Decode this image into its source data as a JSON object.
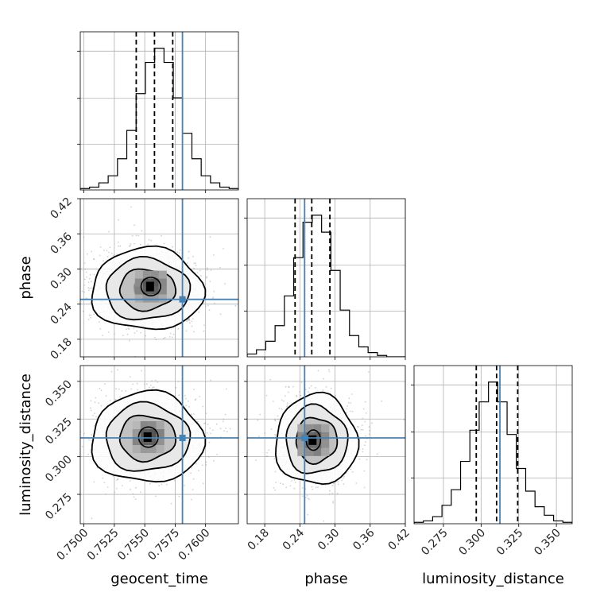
{
  "chart_data": {
    "type": "corner",
    "grid": true,
    "truth_color": "#4682b4",
    "hist_color": "#000000",
    "quantile_style": "dashed",
    "parameters": [
      {
        "name": "geocent_time",
        "label": "geocent_time",
        "range": [
          0.7497,
          0.7627
        ],
        "ticks": [
          0.75,
          0.7525,
          0.755,
          0.7575,
          0.76
        ],
        "tick_labels": [
          "0.7500",
          "0.7525",
          "0.7550",
          "0.7575",
          "0.7600"
        ],
        "truth": 0.7581,
        "quantiles": [
          0.7543,
          0.7558,
          0.7573
        ],
        "hist_bins": [
          0.7497,
          0.7627
        ],
        "hist_counts": [
          1,
          2,
          5,
          10,
          22,
          42,
          68,
          90,
          100,
          90,
          65,
          40,
          22,
          10,
          5,
          2,
          1
        ]
      },
      {
        "name": "phase",
        "label": "phase",
        "range": [
          0.15,
          0.42
        ],
        "ticks": [
          0.18,
          0.24,
          0.3,
          0.36,
          0.42
        ],
        "tick_labels": [
          "0.18",
          "0.24",
          "0.30",
          "0.36",
          "0.42"
        ],
        "truth": 0.2481,
        "quantiles": [
          0.2318,
          0.2603,
          0.2912
        ],
        "hist_bins": [
          0.15,
          0.42
        ],
        "hist_counts": [
          2,
          5,
          11,
          22,
          43,
          70,
          95,
          100,
          88,
          61,
          33,
          15,
          7,
          3,
          1,
          0,
          0
        ]
      },
      {
        "name": "luminosity_distance",
        "label": "luminosity_distance",
        "range": [
          0.2555,
          0.3605
        ],
        "ticks": [
          0.275,
          0.3,
          0.325,
          0.35
        ],
        "tick_labels": [
          "0.275",
          "0.300",
          "0.325",
          "0.350"
        ],
        "truth": 0.3125,
        "quantiles": [
          0.2968,
          0.3103,
          0.3243
        ],
        "hist_bins": [
          0.2555,
          0.3605
        ],
        "hist_counts": [
          1,
          2,
          5,
          13,
          24,
          44,
          66,
          86,
          100,
          86,
          63,
          39,
          23,
          12,
          6,
          2,
          1
        ]
      }
    ],
    "pairs": [
      {
        "x": "geocent_time",
        "y": "phase",
        "center": [
          0.7552,
          0.265
        ],
        "spread": [
          0.0023,
          0.035
        ],
        "mode": [
          0.7555,
          0.27
        ]
      },
      {
        "x": "geocent_time",
        "y": "luminosity_distance",
        "center": [
          0.7552,
          0.3125
        ],
        "spread": [
          0.0023,
          0.015
        ],
        "mode": [
          0.7553,
          0.313
        ]
      },
      {
        "x": "phase",
        "y": "luminosity_distance",
        "center": [
          0.268,
          0.311
        ],
        "spread": [
          0.035,
          0.015
        ],
        "mode": [
          0.263,
          0.311
        ]
      }
    ]
  }
}
